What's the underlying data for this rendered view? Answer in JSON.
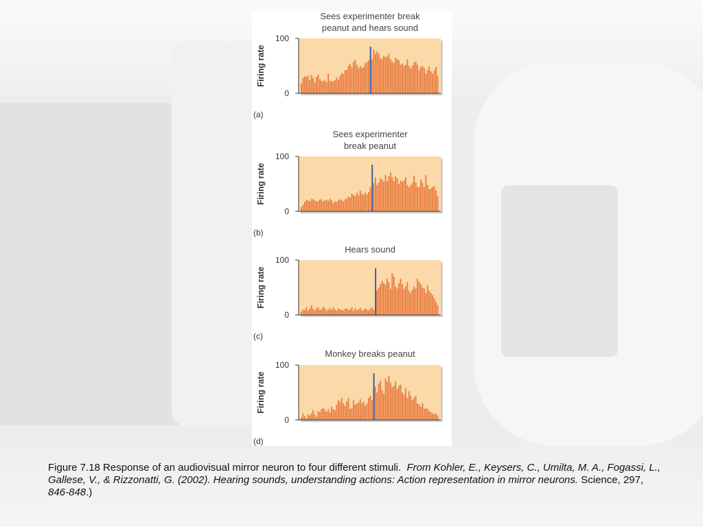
{
  "caption": {
    "lead": "Figure 7.18 Response of an audiovisual mirror neuron to four different stimuli.",
    "from": "From Kohler, E., Keysers, C., Umilta, M. A., Fogassi, L., Gallese, V., & Rizzonatti, G. (2002). Hearing sounds, understanding actions: Action representation in mirror neurons.",
    "journal": "Science",
    "volume": ", 297, ",
    "pages": "846-848",
    "close": ".)"
  },
  "chart_data": [
    {
      "type": "bar",
      "panel": "(a)",
      "title_lines": [
        "Sees experimenter break",
        "peanut and hears sound"
      ],
      "ylabel": "Firing rate",
      "ylim": [
        0,
        100
      ],
      "yticks": [
        0,
        100
      ],
      "marker_index": 41,
      "colors": {
        "bar": "#e87b3f",
        "background": "#fbd9a8",
        "marker": "#3a5da8"
      },
      "values": [
        18,
        28,
        31,
        30,
        32,
        24,
        33,
        28,
        20,
        30,
        34,
        26,
        23,
        22,
        24,
        20,
        36,
        23,
        22,
        22,
        24,
        29,
        25,
        32,
        37,
        35,
        42,
        43,
        50,
        54,
        48,
        57,
        61,
        52,
        46,
        50,
        46,
        48,
        55,
        57,
        60,
        70,
        61,
        80,
        72,
        76,
        72,
        64,
        62,
        68,
        66,
        67,
        72,
        62,
        58,
        55,
        65,
        62,
        60,
        52,
        54,
        50,
        52,
        62,
        50,
        45,
        50,
        56,
        58,
        52,
        42,
        48,
        50,
        46,
        36,
        42,
        49,
        40,
        36,
        42,
        48,
        32
      ]
    },
    {
      "type": "bar",
      "panel": "(b)",
      "title_lines": [
        "Sees experimenter",
        "break peanut"
      ],
      "ylabel": "Firing rate",
      "ylim": [
        0,
        100
      ],
      "yticks": [
        0,
        100
      ],
      "marker_index": 42,
      "colors": {
        "bar": "#e87b3f",
        "background": "#fbd9a8",
        "marker": "#3a5da8"
      },
      "values": [
        8,
        12,
        17,
        21,
        20,
        18,
        22,
        22,
        20,
        18,
        19,
        21,
        22,
        18,
        20,
        21,
        19,
        23,
        20,
        15,
        18,
        17,
        20,
        22,
        21,
        18,
        22,
        23,
        27,
        25,
        32,
        30,
        28,
        34,
        29,
        38,
        33,
        30,
        34,
        31,
        35,
        44,
        30,
        52,
        62,
        48,
        52,
        60,
        58,
        54,
        66,
        55,
        64,
        71,
        62,
        55,
        64,
        60,
        50,
        56,
        54,
        56,
        62,
        48,
        44,
        48,
        52,
        65,
        53,
        45,
        44,
        58,
        52,
        44,
        66,
        48,
        40,
        42,
        44,
        46,
        38,
        28
      ]
    },
    {
      "type": "bar",
      "panel": "(c)",
      "title_lines": [
        "Hears sound"
      ],
      "ylabel": "Firing rate",
      "ylim": [
        0,
        100
      ],
      "yticks": [
        0,
        100
      ],
      "marker_index": 44,
      "colors": {
        "bar": "#e87b3f",
        "background": "#fbd9a8",
        "marker": "#3a5da8"
      },
      "values": [
        6,
        10,
        9,
        14,
        8,
        12,
        18,
        11,
        8,
        12,
        14,
        9,
        10,
        15,
        12,
        8,
        10,
        12,
        9,
        14,
        10,
        8,
        12,
        10,
        9,
        8,
        11,
        12,
        9,
        10,
        14,
        8,
        12,
        9,
        10,
        13,
        8,
        9,
        12,
        10,
        8,
        12,
        14,
        10,
        5,
        45,
        50,
        56,
        62,
        58,
        55,
        66,
        60,
        48,
        76,
        70,
        52,
        48,
        58,
        66,
        56,
        48,
        52,
        60,
        44,
        40,
        46,
        52,
        48,
        66,
        60,
        56,
        50,
        48,
        40,
        54,
        44,
        40,
        36,
        30,
        24,
        18
      ]
    },
    {
      "type": "bar",
      "panel": "(d)",
      "title_lines": [
        "Monkey breaks peanut"
      ],
      "ylabel": "Firing rate",
      "ylim": [
        0,
        100
      ],
      "yticks": [
        0,
        100
      ],
      "marker_index": 43,
      "colors": {
        "bar": "#e87b3f",
        "background": "#fbd9a8",
        "marker": "#3a5da8"
      },
      "values": [
        4,
        12,
        7,
        3,
        10,
        8,
        12,
        18,
        10,
        6,
        16,
        14,
        20,
        22,
        18,
        15,
        20,
        14,
        24,
        20,
        18,
        28,
        36,
        33,
        40,
        30,
        26,
        34,
        40,
        20,
        22,
        36,
        28,
        30,
        32,
        38,
        30,
        34,
        26,
        30,
        40,
        44,
        36,
        55,
        60,
        50,
        66,
        72,
        54,
        48,
        76,
        70,
        80,
        68,
        60,
        62,
        70,
        56,
        62,
        64,
        50,
        46,
        58,
        40,
        52,
        44,
        36,
        40,
        44,
        30,
        28,
        24,
        30,
        20,
        22,
        20,
        16,
        14,
        12,
        10,
        12,
        8
      ]
    }
  ]
}
